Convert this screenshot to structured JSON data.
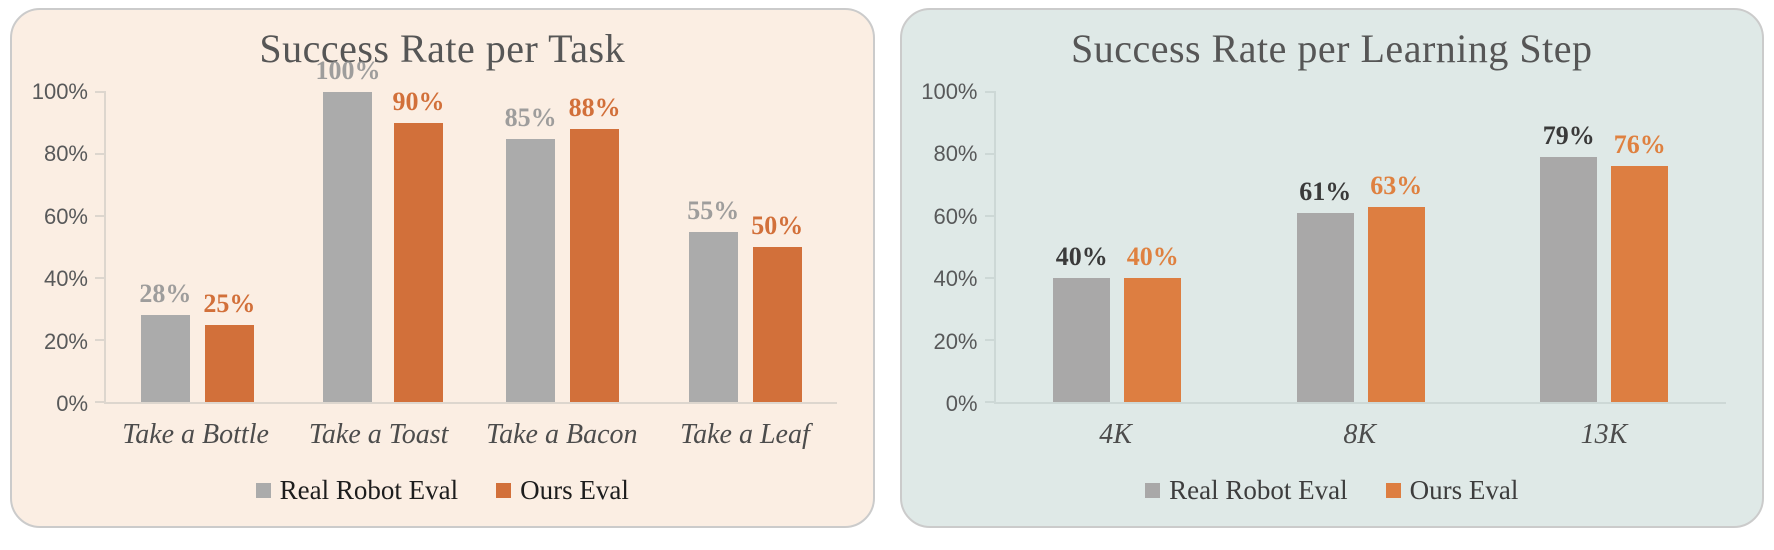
{
  "chart_data": [
    {
      "type": "bar",
      "title": "Success Rate per Task",
      "categories": [
        "Take a Bottle",
        "Take a Toast",
        "Take a Bacon",
        "Take a Leaf"
      ],
      "series": [
        {
          "name": "Real Robot Eval",
          "values": [
            28,
            100,
            85,
            55
          ],
          "bar_color": "#ababab",
          "label_color": "#9e9d9c"
        },
        {
          "name": "Ours Eval",
          "values": [
            25,
            90,
            88,
            50
          ],
          "bar_color": "#d2703a",
          "label_color": "#d2703a"
        }
      ],
      "value_suffix": "%",
      "yticks": [
        0,
        20,
        40,
        60,
        80,
        100
      ],
      "ytick_suffix": "%",
      "ylim": [
        0,
        100
      ],
      "grid": false,
      "legend_position": "bottom",
      "colors": {
        "panel_bg": "#fbeee3",
        "panel_border": "#cbcbcb",
        "axis_line": "#ddd6ce",
        "tick_label": "#58595a",
        "category_label": "#4c4c4c",
        "title": "#565656",
        "legend_text": "#1d1d1d"
      }
    },
    {
      "type": "bar",
      "title": "Success Rate per Learning Step",
      "categories": [
        "4K",
        "8K",
        "13K"
      ],
      "series": [
        {
          "name": "Real Robot Eval",
          "values": [
            40,
            61,
            79
          ],
          "bar_color": "#a9a8a8",
          "label_color": "#3a3a3a"
        },
        {
          "name": "Ours Eval",
          "values": [
            40,
            63,
            76
          ],
          "bar_color": "#dd7e41",
          "label_color": "#df8140"
        }
      ],
      "value_suffix": "%",
      "yticks": [
        0,
        20,
        40,
        60,
        80,
        100
      ],
      "ytick_suffix": "%",
      "ylim": [
        0,
        100
      ],
      "grid": false,
      "legend_position": "bottom",
      "colors": {
        "panel_bg": "#dfe9e7",
        "panel_border": "#cbcbcb",
        "axis_line": "#cdd8d6",
        "tick_label": "#58595a",
        "category_label": "#4c4c4c",
        "title": "#565656",
        "legend_text": "#3d3d3d"
      }
    }
  ]
}
